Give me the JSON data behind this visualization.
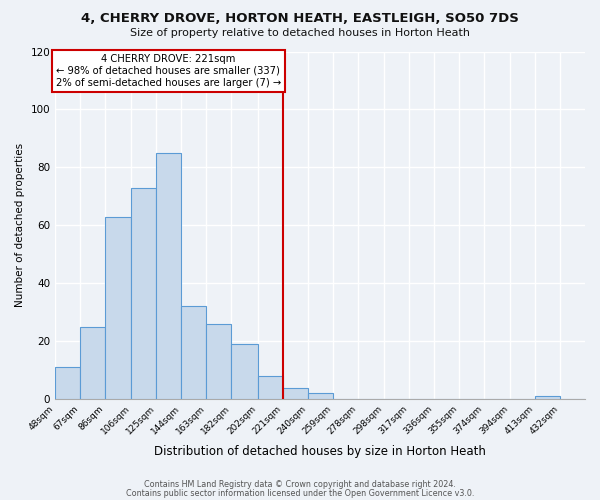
{
  "title": "4, CHERRY DROVE, HORTON HEATH, EASTLEIGH, SO50 7DS",
  "subtitle": "Size of property relative to detached houses in Horton Heath",
  "xlabel": "Distribution of detached houses by size in Horton Heath",
  "ylabel": "Number of detached properties",
  "bin_labels": [
    "48sqm",
    "67sqm",
    "86sqm",
    "106sqm",
    "125sqm",
    "144sqm",
    "163sqm",
    "182sqm",
    "202sqm",
    "221sqm",
    "240sqm",
    "259sqm",
    "278sqm",
    "298sqm",
    "317sqm",
    "336sqm",
    "355sqm",
    "374sqm",
    "394sqm",
    "413sqm",
    "432sqm"
  ],
  "bin_edges": [
    48,
    67,
    86,
    106,
    125,
    144,
    163,
    182,
    202,
    221,
    240,
    259,
    278,
    298,
    317,
    336,
    355,
    374,
    394,
    413,
    432
  ],
  "bar_heights": [
    11,
    25,
    63,
    73,
    85,
    32,
    26,
    19,
    8,
    4,
    2,
    0,
    0,
    0,
    0,
    0,
    0,
    0,
    0,
    1,
    0
  ],
  "bar_color": "#c8d9eb",
  "bar_edge_color": "#5b9bd5",
  "vline_x": 221,
  "vline_color": "#cc0000",
  "annotation_title": "4 CHERRY DROVE: 221sqm",
  "annotation_line1": "← 98% of detached houses are smaller (337)",
  "annotation_line2": "2% of semi-detached houses are larger (7) →",
  "annotation_box_color": "#cc0000",
  "annotation_bg": "#ffffff",
  "ylim": [
    0,
    120
  ],
  "yticks": [
    0,
    20,
    40,
    60,
    80,
    100,
    120
  ],
  "footer1": "Contains HM Land Registry data © Crown copyright and database right 2024.",
  "footer2": "Contains public sector information licensed under the Open Government Licence v3.0.",
  "background_color": "#eef2f7",
  "plot_background": "#eef2f7",
  "grid_color": "#ffffff"
}
